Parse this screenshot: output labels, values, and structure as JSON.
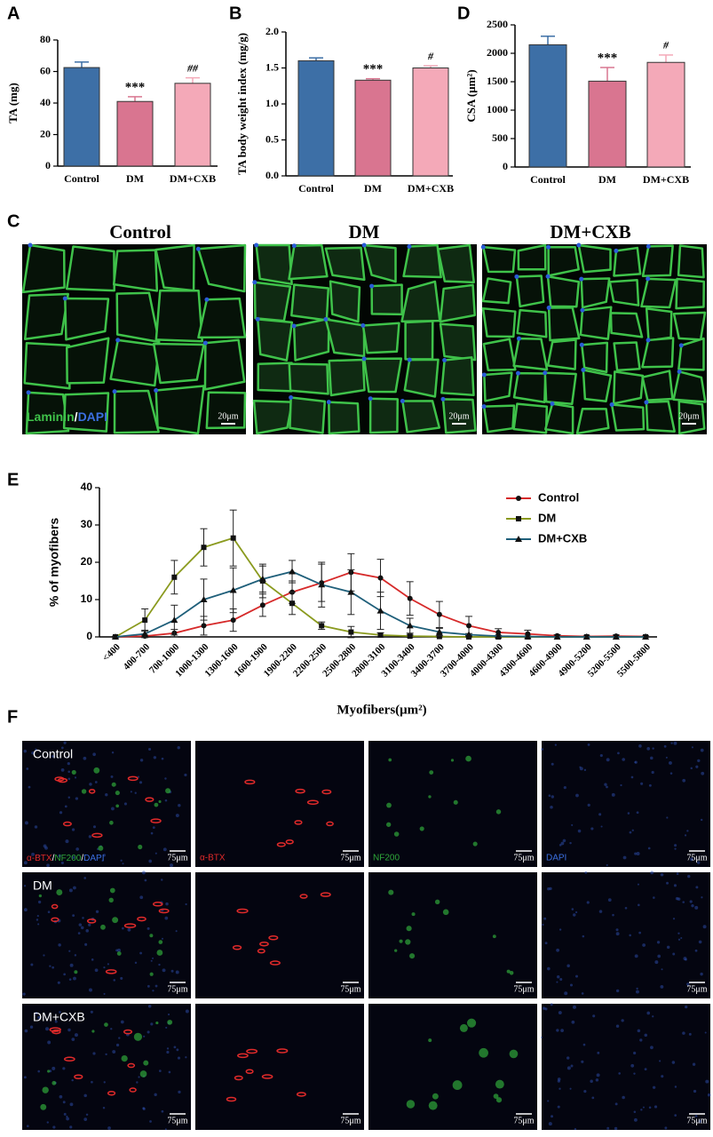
{
  "chart_data": [
    {
      "type": "bar",
      "panel_label": "A",
      "ylabel": "TA (mg)",
      "categories": [
        "Control",
        "DM",
        "DM+CXB"
      ],
      "values": [
        62.5,
        41,
        52.5
      ],
      "errors": [
        3.5,
        3,
        3.5
      ],
      "annotations": [
        null,
        "***",
        "##"
      ],
      "colors": [
        "#3d6fa6",
        "#d97590",
        "#f4a9b8"
      ],
      "ylim": [
        0,
        80
      ],
      "yticks": [
        0,
        20,
        40,
        60,
        80
      ]
    },
    {
      "type": "bar",
      "panel_label": "B",
      "ylabel": "TA body weight index (mg/g)",
      "categories": [
        "Control",
        "DM",
        "DM+CXB"
      ],
      "values": [
        1.6,
        1.33,
        1.5
      ],
      "errors": [
        0.04,
        0.02,
        0.03
      ],
      "annotations": [
        null,
        "***",
        "#"
      ],
      "colors": [
        "#3d6fa6",
        "#d97590",
        "#f4a9b8"
      ],
      "ylim": [
        0,
        2
      ],
      "yticks": [
        {
          "value": 0,
          "label": "0.0"
        },
        0.5,
        {
          "value": 1,
          "label": "1.0"
        },
        1.5,
        {
          "value": 2,
          "label": "2.0"
        }
      ]
    },
    {
      "type": "bar",
      "panel_label": "D",
      "ylabel": "CSA (μm²)",
      "categories": [
        "Control",
        "DM",
        "DM+CXB"
      ],
      "values": [
        2150,
        1510,
        1840
      ],
      "errors": [
        150,
        240,
        130
      ],
      "annotations": [
        null,
        "***",
        "#"
      ],
      "colors": [
        "#3d6fa6",
        "#d97590",
        "#f4a9b8"
      ],
      "ylim": [
        0,
        2500
      ],
      "yticks": [
        0,
        500,
        1000,
        1500,
        2000,
        2500
      ]
    },
    {
      "type": "line",
      "panel_label": "E",
      "ylabel": "% of myofibers",
      "xlabel": "Myofibers(μm²)",
      "categories": [
        "<400",
        "400-700",
        "700-1000",
        "1000-1300",
        "1300-1600",
        "1600-1900",
        "1900-2200",
        "2200-2500",
        "2500-2800",
        "2800-3100",
        "3100-3400",
        "3400-3700",
        "3700-4000",
        "4000-4300",
        "4300-4600",
        "4600-4900",
        "4900-5200",
        "5200-5500",
        "5500-5800"
      ],
      "series": [
        {
          "name": "Control",
          "color": "#d62a2a",
          "marker": "circle",
          "values": [
            0,
            0.2,
            1,
            3,
            4.5,
            8.5,
            12,
            14.5,
            17.3,
            15.8,
            10.3,
            6,
            3,
            1.2,
            0.8,
            0.3,
            0.1,
            0.2,
            0.1
          ],
          "errors": [
            0.1,
            0.3,
            1,
            2.5,
            3,
            3,
            3,
            5,
            5,
            5,
            4.5,
            3.5,
            2.5,
            1,
            1,
            0.3,
            0.2,
            0.3,
            0.2
          ]
        },
        {
          "name": "DM",
          "color": "#8a9a1e",
          "marker": "square",
          "values": [
            0,
            4.5,
            16,
            24,
            26.5,
            15,
            9,
            3,
            1.3,
            0.5,
            0.2,
            0.1,
            0,
            0,
            0,
            0,
            0,
            0,
            0
          ],
          "errors": [
            0.2,
            3,
            4.5,
            5,
            7.5,
            4.5,
            3,
            1,
            1.5,
            0.6,
            0.3,
            0.2,
            0.1,
            0,
            0,
            0,
            0,
            0,
            0
          ]
        },
        {
          "name": "DM+CXB",
          "color": "#1f5f7a",
          "marker": "triangle",
          "values": [
            0,
            0.8,
            4.5,
            10,
            12.5,
            15.5,
            17.5,
            14,
            12,
            7,
            3,
            1.3,
            0.6,
            0.2,
            0.1,
            0,
            0,
            0,
            0
          ],
          "errors": [
            0.1,
            1,
            4,
            5.5,
            6,
            3.5,
            3,
            6,
            6,
            5,
            2,
            1,
            0.3,
            0.2,
            0.1,
            0,
            0,
            0,
            0
          ]
        }
      ],
      "ylim": [
        0,
        40
      ],
      "yticks": [
        0,
        10,
        20,
        30,
        40
      ],
      "legend": "upper right"
    }
  ],
  "panel_c": {
    "panel_label": "C",
    "titles": [
      "Control",
      "DM",
      "DM+CXB"
    ],
    "stains": [
      "Laminin",
      "DAPI"
    ],
    "separator": "/",
    "scale_bar": "20μm"
  },
  "panel_f": {
    "panel_label": "F",
    "rows": [
      "Control",
      "DM",
      "DM+CXB"
    ],
    "channels": [
      "α-BTX",
      "NF200",
      "DAPI"
    ],
    "separator": "/",
    "scale_bar": "75μm"
  }
}
